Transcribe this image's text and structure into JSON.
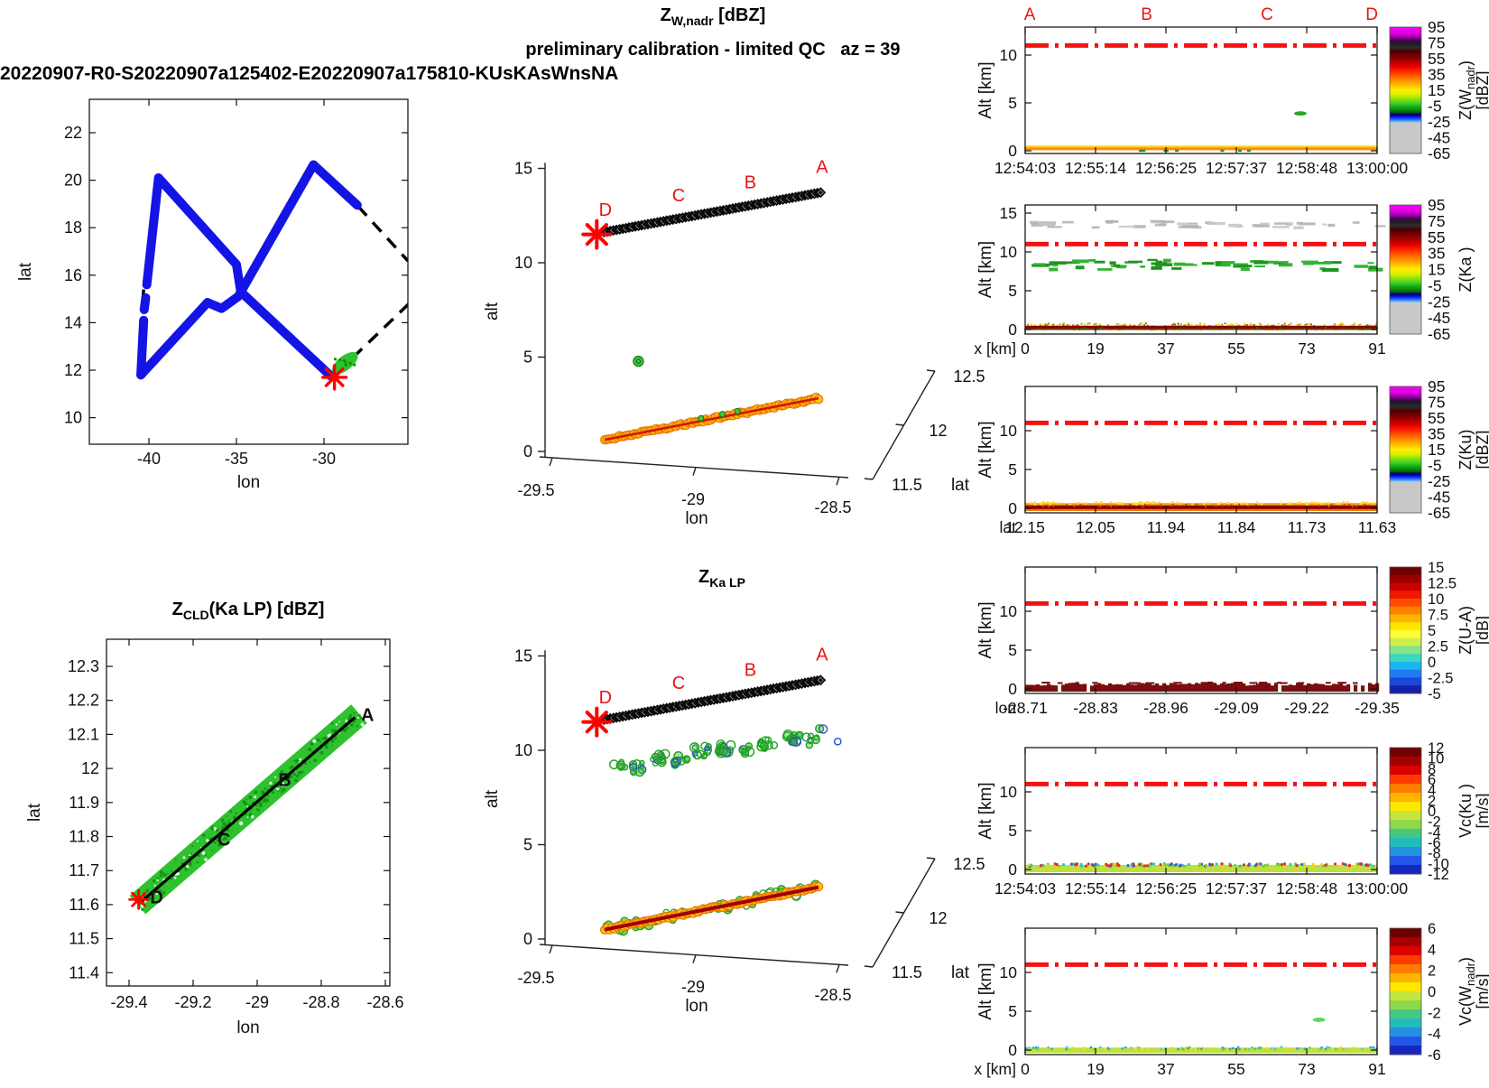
{
  "header": {
    "file_title": "20220907-R0-S20220907a125402-E20220907a175810-KUsKAsWnsNA"
  },
  "titles": {
    "top3d_main": {
      "base": "Z",
      "sub": "W,nadr",
      "rest": " [dBZ]"
    },
    "top3d_subtitle": "preliminary calibration - limited QC   az = 39",
    "bottom3d_main": {
      "base": "Z",
      "sub": "Ka LP",
      "rest": ""
    },
    "swath_title": {
      "base": "Z",
      "sub": "CLD",
      "rest": "(Ka LP) [dBZ]"
    }
  },
  "colors": {
    "track_blue": "#1414E6",
    "swath_green": "#2EC22E",
    "marker_red": "#FF0000",
    "flightline_red": "#F51212",
    "surface_orange": "#FF9400",
    "surface_yellow": "#FFD41E",
    "surface_darkred": "#990000",
    "cloud_green": "#1FA01F",
    "cloud_blue": "#2D50C8",
    "cloud_gray": "#C0C0C0",
    "maroon": "#7A0E0E",
    "band_yellowgreen": "#BEE03C"
  },
  "chart_data": {
    "map": {
      "type": "scatter",
      "xlabel": "lon",
      "ylabel": "lat",
      "xticks": [
        -40,
        -35,
        -30
      ],
      "yticks": [
        10,
        12,
        14,
        16,
        18,
        20,
        22
      ],
      "xlim": [
        -43.4,
        -25.2
      ],
      "ylim": [
        8.9,
        23.4
      ],
      "track_segments": [
        [
          [
            -40.46,
            11.8
          ],
          [
            -40.3,
            14.1
          ]
        ],
        [
          [
            -40.27,
            14.55
          ],
          [
            -40.18,
            15.05
          ]
        ],
        [
          [
            -40.12,
            15.6
          ],
          [
            -39.45,
            20.1
          ]
        ],
        [
          [
            -39.45,
            20.1
          ],
          [
            -35.0,
            16.45
          ],
          [
            -34.75,
            15.3
          ],
          [
            -29.6,
            11.75
          ]
        ],
        [
          [
            -40.46,
            11.8
          ],
          [
            -36.65,
            14.85
          ],
          [
            -35.85,
            14.6
          ],
          [
            -34.9,
            15.1
          ],
          [
            -30.6,
            20.65
          ],
          [
            -28.1,
            18.95
          ]
        ]
      ],
      "dashed_segments": [
        [
          [
            -28.05,
            18.9
          ],
          [
            -25.2,
            16.6
          ]
        ],
        [
          [
            -25.15,
            14.8
          ],
          [
            -28.6,
            12.35
          ]
        ],
        [
          [
            -40.3,
            15.4
          ],
          [
            -40.36,
            14.8
          ]
        ]
      ],
      "swath_blob": {
        "lon": -28.8,
        "lat": 12.3
      },
      "star": {
        "lon": -29.4,
        "lat": 11.7
      }
    },
    "swath_plot": {
      "type": "scatter",
      "xlabel": "lon",
      "ylabel": "lat",
      "xticks": [
        "-29.4",
        "-29.2",
        "-29",
        "-28.8",
        "-28.6"
      ],
      "yticks": [
        "11.4",
        "11.5",
        "11.6",
        "11.7",
        "11.8",
        "11.9",
        "12",
        "12.1",
        "12.2",
        "12.3"
      ],
      "line": [
        [
          -29.36,
          11.61
        ],
        [
          -28.695,
          12.15
        ]
      ],
      "labels": [
        {
          "t": "A",
          "lon": -28.695,
          "lat": 12.155
        },
        {
          "t": "B",
          "lon": -28.925,
          "lat": 11.965
        },
        {
          "t": "C",
          "lon": -29.115,
          "lat": 11.79
        },
        {
          "t": "D",
          "lon": -29.325,
          "lat": 11.62
        }
      ],
      "star": {
        "lon": -29.37,
        "lat": 11.615
      }
    },
    "plots3d": {
      "zlabel": "alt",
      "zticks": [
        0,
        5,
        10,
        15
      ],
      "xlabel": "lon",
      "xticks": [
        "-29.5",
        "-29",
        "-28.5"
      ],
      "ylabel": "lat",
      "yticks": [
        "11.5",
        "12",
        "12.5"
      ],
      "aircraft_chain": {
        "from": [
          -29.32,
          11.62
        ],
        "to": [
          -28.565,
          13.72
        ]
      },
      "chain_labels": [
        {
          "t": "D",
          "lon": -29.315,
          "alt": 12.5
        },
        {
          "t": "C",
          "lon": -29.06,
          "alt": 13.25
        },
        {
          "t": "B",
          "lon": -28.81,
          "alt": 13.95
        },
        {
          "t": "A",
          "lon": -28.56,
          "alt": 14.75
        }
      ],
      "star": {
        "lon": -29.345,
        "alt": 11.5
      },
      "top": {
        "surface": {
          "from": [
            -29.317,
            0.62
          ],
          "to": [
            -28.572,
            2.82
          ]
        },
        "iso_dots": [
          {
            "lon": -29.2,
            "alt": 4.78
          }
        ]
      },
      "bottom": {
        "surface": {
          "from": [
            -29.317,
            0.5
          ],
          "to": [
            -28.572,
            2.75
          ]
        },
        "clusters": [
          [
            -29.27,
            9.35,
            6
          ],
          [
            -29.2,
            9.1,
            9
          ],
          [
            -29.13,
            9.55,
            12
          ],
          [
            -29.05,
            9.45,
            9
          ],
          [
            -28.98,
            9.95,
            13
          ],
          [
            -28.9,
            10.05,
            16
          ],
          [
            -28.82,
            9.95,
            8
          ],
          [
            -28.75,
            10.35,
            11
          ],
          [
            -28.66,
            10.6,
            14
          ],
          [
            -28.6,
            10.5,
            6
          ],
          [
            -28.55,
            11.0,
            2
          ],
          [
            -28.53,
            10.3,
            1
          ]
        ]
      }
    },
    "colorbars": {
      "radar_stops": [
        [
          0,
          "#FA00FA"
        ],
        [
          0.05,
          "#DC00DC"
        ],
        [
          0.08,
          "#9A00A8"
        ],
        [
          0.105,
          "#4A0054"
        ],
        [
          0.13,
          "#1C1C1C"
        ],
        [
          0.16,
          "#2E2E2E"
        ],
        [
          0.19,
          "#460000"
        ],
        [
          0.23,
          "#780000"
        ],
        [
          0.27,
          "#AE0000"
        ],
        [
          0.31,
          "#E60000"
        ],
        [
          0.345,
          "#FF2000"
        ],
        [
          0.385,
          "#FF5C00"
        ],
        [
          0.425,
          "#FF9000"
        ],
        [
          0.465,
          "#FFC400"
        ],
        [
          0.5,
          "#FFF000"
        ],
        [
          0.535,
          "#D8F000"
        ],
        [
          0.565,
          "#96E600"
        ],
        [
          0.6,
          "#46D232"
        ],
        [
          0.63,
          "#14AE14"
        ],
        [
          0.655,
          "#0A8A0A"
        ],
        [
          0.675,
          "#046204"
        ],
        [
          0.688,
          "#00006E"
        ],
        [
          0.7,
          "#0000B4"
        ],
        [
          0.715,
          "#0A28F0"
        ],
        [
          0.73,
          "#2864FF"
        ],
        [
          0.742,
          "#46A0FF"
        ],
        [
          0.75,
          "#6EC0FF"
        ],
        [
          0.756,
          "#C8C8C8"
        ],
        [
          1,
          "#C8C8C8"
        ]
      ],
      "jet_ua": [
        "#700000",
        "#9A0000",
        "#C80000",
        "#F01800",
        "#FF4C00",
        "#FF8200",
        "#FFB400",
        "#FFE600",
        "#FFFC38",
        "#CCF04C",
        "#84E488",
        "#3CD8C0",
        "#1CB4EC",
        "#1E7CF0",
        "#1E46D8",
        "#1420AC"
      ],
      "vc": [
        "#700000",
        "#A40000",
        "#DC0000",
        "#FF3C00",
        "#FF7C00",
        "#FFB400",
        "#FFE800",
        "#C6E63C",
        "#8ED84C",
        "#46C882",
        "#22BCBC",
        "#2292E0",
        "#2256E8",
        "#1826C0"
      ]
    },
    "panels": [
      {
        "name": "z-wnadr-time",
        "ylabel": "Alt [km]",
        "yticks": [
          0,
          5,
          10
        ],
        "xticks": [
          "12:54:03",
          "12:55:14",
          "12:56:25",
          "12:57:37",
          "12:58:48",
          "13:00:00"
        ],
        "xprefix": "",
        "abcd": [
          "A",
          "B",
          "C",
          "D"
        ],
        "flight_alt_km": 11,
        "surface": "thin_orange",
        "patches": [
          {
            "xf": 0.782,
            "alt": 3.9,
            "c": "#28A828"
          }
        ],
        "colorbar": {
          "kind": "radar",
          "ticks": [
            "95",
            "75",
            "55",
            "35",
            "15",
            "-5",
            "-25",
            "-45",
            "-65"
          ],
          "label": {
            "base": "Z(W",
            "sub": "nadr",
            "rest": ")"
          },
          "units": "[dBZ]"
        }
      },
      {
        "name": "z-ka-x",
        "ylabel": "Alt [km]",
        "yticks": [
          0,
          5,
          10,
          15
        ],
        "xticks": [
          "0",
          "19",
          "37",
          "55",
          "73",
          "91"
        ],
        "xprefix": "x [km]",
        "flight_alt_km": 11,
        "surface": "speckle_yellow",
        "cloud_rows": [
          {
            "alt": [
              13.3,
              14.1
            ],
            "kind": "gray"
          },
          {
            "alt": [
              7.9,
              9.2
            ],
            "kind": "green"
          }
        ],
        "colorbar": {
          "kind": "radar",
          "ticks": [
            "95",
            "75",
            "55",
            "35",
            "15",
            "-5",
            "-25",
            "-45",
            "-65"
          ],
          "label": {
            "base": "Z(Ka )",
            "sub": "",
            "rest": ""
          },
          "units": ""
        }
      },
      {
        "name": "z-ku-lat",
        "ylabel": "Alt [km]",
        "yticks": [
          0,
          5,
          10
        ],
        "xticks": [
          "12.15",
          "12.05",
          "11.94",
          "11.84",
          "11.73",
          "11.63"
        ],
        "xprefix": "lat",
        "flight_alt_km": 11,
        "surface": "thick_orange",
        "patches": [],
        "colorbar": {
          "kind": "radar",
          "ticks": [
            "95",
            "75",
            "55",
            "35",
            "15",
            "-5",
            "-25",
            "-45",
            "-65"
          ],
          "label": {
            "base": "Z(Ku)",
            "sub": "",
            "rest": ""
          },
          "units": "[dBZ]"
        }
      },
      {
        "name": "z-ua-lon",
        "ylabel": "Alt [km]",
        "yticks": [
          0,
          5,
          10
        ],
        "xticks": [
          "-28.71",
          "-28.83",
          "-28.96",
          "-29.09",
          "-29.22",
          "-29.35"
        ],
        "xprefix": "lon",
        "flight_alt_km": 11,
        "surface": "maroon_ragged",
        "patches": [],
        "colorbar": {
          "kind": "jet_ua",
          "ticks": [
            "15",
            "12.5",
            "10",
            "7.5",
            "5",
            "2.5",
            "0",
            "-2.5",
            "-5"
          ],
          "label": {
            "base": "Z(U-A)",
            "sub": "",
            "rest": ""
          },
          "units": "[dB]"
        }
      },
      {
        "name": "vc-ku-time",
        "ylabel": "Alt [km]",
        "yticks": [
          0,
          5,
          10
        ],
        "xticks": [
          "12:54:03",
          "12:55:14",
          "12:56:25",
          "12:57:37",
          "12:58:48",
          "13:00:00"
        ],
        "xprefix": "",
        "flight_alt_km": 11,
        "surface": "yellowgreen_speckle",
        "patches": [],
        "colorbar": {
          "kind": "vc",
          "ticks": [
            "12",
            "10",
            "8",
            "6",
            "4",
            "2",
            "0",
            "-2",
            "-4",
            "-6",
            "-8",
            "-10",
            "-12"
          ],
          "label": {
            "base": "Vc(Ku )",
            "sub": "",
            "rest": ""
          },
          "units": "[m/s]"
        }
      },
      {
        "name": "vc-wnadr-x",
        "ylabel": "Alt [km]",
        "yticks": [
          0,
          5,
          10
        ],
        "xticks": [
          "0",
          "19",
          "37",
          "55",
          "73",
          "91"
        ],
        "xprefix": "x [km]",
        "flight_alt_km": 11,
        "surface": "thin_yellowgreen",
        "patches": [
          {
            "xf": 0.835,
            "alt": 3.9,
            "c": "#5FD65F"
          }
        ],
        "colorbar": {
          "kind": "vc",
          "ticks": [
            "6",
            "4",
            "2",
            "0",
            "-2",
            "-4",
            "-6"
          ],
          "label": {
            "base": "Vc(W",
            "sub": "nadr",
            "rest": ")"
          },
          "units": "[m/s]"
        }
      }
    ]
  }
}
